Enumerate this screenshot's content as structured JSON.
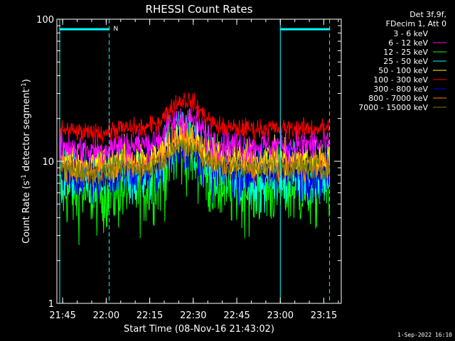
{
  "chart_data": {
    "type": "line",
    "title": "RHESSI Count Rates",
    "xlabel": "Start Time (08-Nov-16 21:43:02)",
    "ylabel_main": "Count Rate (s",
    "ylabel_sup1": "-1",
    "ylabel_mid": " detector segment",
    "ylabel_sup2": "-1",
    "ylabel_end": ")",
    "yscale": "log",
    "ylim": [
      1,
      100
    ],
    "xlim_minutes": [
      21.7167,
      23.35
    ],
    "x_ticks": [
      {
        "m": 21.75,
        "label": "21:45"
      },
      {
        "m": 22.0,
        "label": "22:00"
      },
      {
        "m": 22.25,
        "label": "22:15"
      },
      {
        "m": 22.5,
        "label": "22:30"
      },
      {
        "m": 22.75,
        "label": "22:45"
      },
      {
        "m": 23.0,
        "label": "23:00"
      },
      {
        "m": 23.25,
        "label": "23:15"
      }
    ],
    "y_ticks": [
      {
        "v": 1,
        "label": "1"
      },
      {
        "v": 10,
        "label": "10"
      },
      {
        "v": 100,
        "label": "100"
      }
    ],
    "legend": {
      "placement": "top-right",
      "header": [
        "Det 3f,9f,",
        "FDecim 1, Att 0"
      ]
    },
    "series": [
      {
        "name": "3 - 6 keV",
        "color": "#000000",
        "base": 9.5,
        "peak": 14.0,
        "noise": 0.1
      },
      {
        "name": "6 - 12 keV",
        "color": "#ff00ff",
        "base": 13.0,
        "peak": 20.0,
        "noise": 0.08
      },
      {
        "name": "12 - 25 keV",
        "color": "#00ff00",
        "base": 6.5,
        "peak": 12.0,
        "noise": 0.2
      },
      {
        "name": "25 - 50 keV",
        "color": "#00ffff",
        "base": 8.0,
        "peak": 16.0,
        "noise": 0.15
      },
      {
        "name": "50 - 100 keV",
        "color": "#ffff00",
        "base": 10.5,
        "peak": 15.0,
        "noise": 0.09
      },
      {
        "name": "100 - 300 keV",
        "color": "#ff0000",
        "base": 17.0,
        "peak": 27.0,
        "noise": 0.05
      },
      {
        "name": "300 - 800 keV",
        "color": "#0000ff",
        "base": 8.5,
        "peak": 13.0,
        "noise": 0.14
      },
      {
        "name": "800 - 7000 keV",
        "color": "#ff8000",
        "base": 9.5,
        "peak": 14.5,
        "noise": 0.08
      },
      {
        "name": "7000 - 15000 keV",
        "color": "#808000",
        "base": 9.0,
        "peak": 13.0,
        "noise": 0.06
      }
    ],
    "peak_center_minutes": 22.45,
    "peak_width_minutes": 0.12,
    "night_markers": {
      "solid_lines_minutes": [
        21.733,
        23.0
      ],
      "dashed_lines_minutes": [
        22.017,
        23.283
      ],
      "bars": [
        {
          "from": 21.733,
          "to": 22.017,
          "value": 85
        },
        {
          "from": 23.0,
          "to": 23.283,
          "value": 85
        }
      ],
      "bar_label": "N",
      "color": "#00ffff"
    }
  },
  "footer_timestamp": "1-Sep-2022 16:10"
}
